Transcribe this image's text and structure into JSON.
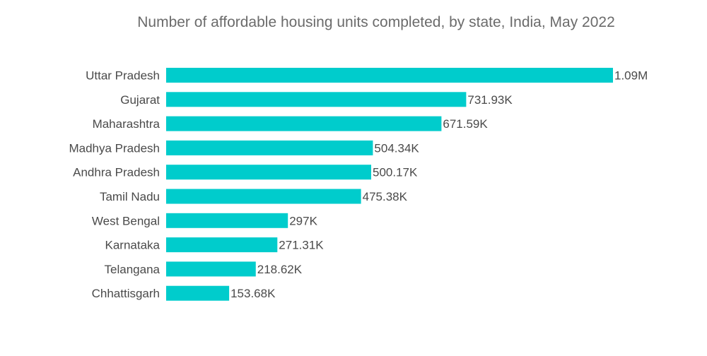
{
  "chart_data": {
    "type": "bar",
    "orientation": "horizontal",
    "title": "Number of affordable housing units completed, by state, India, May 2022",
    "xlabel": "",
    "ylabel": "",
    "xlim": [
      0,
      1090000
    ],
    "grid": false,
    "legend": "none",
    "bar_color": "#00cccc",
    "categories": [
      "Uttar Pradesh",
      "Gujarat",
      "Maharashtra",
      "Madhya Pradesh",
      "Andhra Pradesh",
      "Tamil Nadu",
      "West Bengal",
      "Karnataka",
      "Telangana",
      "Chhattisgarh"
    ],
    "values": [
      1090000,
      731930,
      671590,
      504340,
      500170,
      475380,
      297000,
      271310,
      218620,
      153680
    ],
    "data_labels": [
      "1.09M",
      "731.93K",
      "671.59K",
      "504.34K",
      "500.17K",
      "475.38K",
      "297K",
      "271.31K",
      "218.62K",
      "153.68K"
    ]
  }
}
